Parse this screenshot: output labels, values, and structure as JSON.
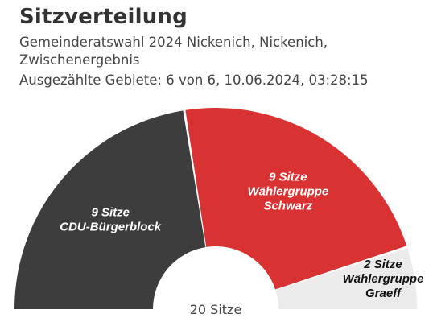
{
  "header": {
    "title": "Sitzverteilung",
    "subtitle": "Gemeinderatswahl 2024 Nickenich, Nickenich, Zwischenergebnis",
    "meta": "Ausgezählte Gebiete: 6 von 6, 10.06.2024, 03:28:15"
  },
  "chart_data": {
    "type": "pie",
    "variant": "half-donut (parliament seats)",
    "total_seats": 20,
    "total_label": "20 Sitze",
    "slices": [
      {
        "seats_label": "9 Sitze",
        "name_lines": [
          "CDU-Bürgerblock"
        ],
        "value": 9,
        "color": "#3d3d3d",
        "text_color": "#ffffff"
      },
      {
        "seats_label": "9 Sitze",
        "name_lines": [
          "Wählergruppe",
          "Schwarz"
        ],
        "value": 9,
        "color": "#d93232",
        "text_color": "#ffffff"
      },
      {
        "seats_label": "2 Sitze",
        "name_lines": [
          "Wählergruppe",
          "Graeff"
        ],
        "value": 2,
        "color": "#ebebeb",
        "text_color": "#111111"
      }
    ]
  }
}
